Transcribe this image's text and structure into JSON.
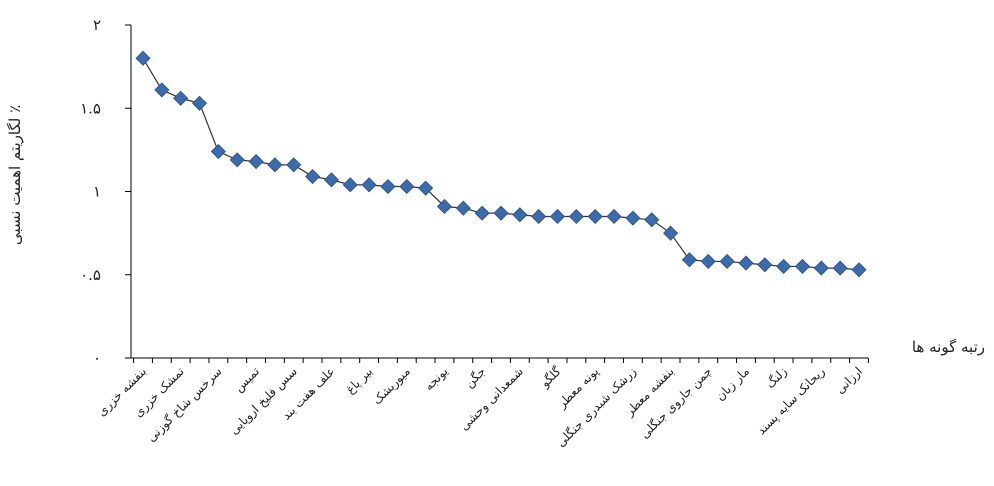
{
  "chart_data": {
    "type": "line",
    "title": "",
    "xlabel": "رتبه گونه ها",
    "ylabel": "لگاریتم اهمیت نسبی ٪",
    "ylim": [
      0,
      2
    ],
    "yticks": [
      {
        "value": 0,
        "label": "۰"
      },
      {
        "value": 0.5,
        "label": "۰.۵"
      },
      {
        "value": 1,
        "label": "۱"
      },
      {
        "value": 1.5,
        "label": "۱.۵"
      },
      {
        "value": 2,
        "label": "۲"
      }
    ],
    "x": [
      1,
      2,
      3,
      4,
      5,
      6,
      7,
      8,
      9,
      10,
      11,
      12,
      13,
      14,
      15,
      16,
      17,
      18,
      19,
      20,
      21,
      22,
      23,
      24,
      25,
      26,
      27,
      28,
      29,
      30,
      31,
      32,
      33,
      34,
      35,
      36,
      37,
      38,
      39
    ],
    "xtick_labels": [
      {
        "x": 1,
        "label": "بنفشه خزری"
      },
      {
        "x": 3,
        "label": "تمشک خزری"
      },
      {
        "x": 5,
        "label": "سرخس شاخ گوزنی"
      },
      {
        "x": 7,
        "label": "تمیس"
      },
      {
        "x": 9,
        "label": "سس فلیخ اروپایی"
      },
      {
        "x": 11,
        "label": "علف هفت بند"
      },
      {
        "x": 13,
        "label": "بیر پاغ"
      },
      {
        "x": 15,
        "label": "میوربشک"
      },
      {
        "x": 17,
        "label": "یونجه"
      },
      {
        "x": 19,
        "label": "جگن"
      },
      {
        "x": 21,
        "label": "شمعدانی وحشی"
      },
      {
        "x": 23,
        "label": "گلگو"
      },
      {
        "x": 25,
        "label": "پونه معطر"
      },
      {
        "x": 27,
        "label": "زرشک شبدری جنگلی"
      },
      {
        "x": 29,
        "label": "بنفشه معطر"
      },
      {
        "x": 31,
        "label": "چمن جاروی جنگلی"
      },
      {
        "x": 33,
        "label": "مار زبان"
      },
      {
        "x": 35,
        "label": "زلنگ"
      },
      {
        "x": 37,
        "label": "ریحانک سایه پسند"
      },
      {
        "x": 39,
        "label": "ارزانی"
      }
    ],
    "series": [
      {
        "color": "#3c6bab",
        "values": [
          1.8,
          1.61,
          1.56,
          1.53,
          1.24,
          1.19,
          1.18,
          1.16,
          1.16,
          1.09,
          1.07,
          1.04,
          1.04,
          1.03,
          1.03,
          1.02,
          0.91,
          0.9,
          0.87,
          0.87,
          0.86,
          0.85,
          0.85,
          0.85,
          0.85,
          0.85,
          0.84,
          0.83,
          0.75,
          0.59,
          0.58,
          0.58,
          0.57,
          0.56,
          0.55,
          0.55,
          0.54,
          0.54,
          0.53
        ]
      }
    ],
    "grid": false,
    "legend": "none"
  }
}
